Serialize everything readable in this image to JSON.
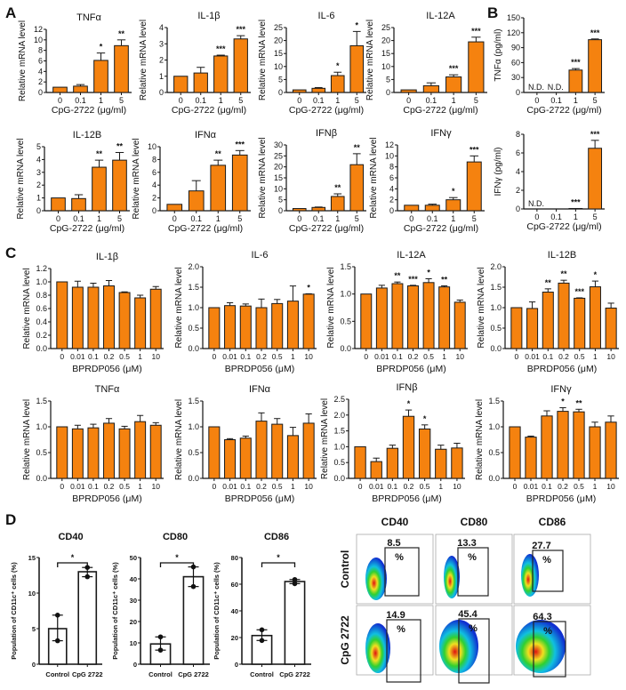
{
  "panel_labels": [
    "A",
    "B",
    "C",
    "D"
  ],
  "colors": {
    "bar": "#f5820f",
    "bar_stroke": "#1a1a1a",
    "axis": "#111111"
  },
  "chart_data": [
    {
      "type": "bar",
      "panel": "A",
      "title": "TNFα",
      "ylabel": "Relative mRNA level",
      "xlabel": "CpG-2722 (μg/ml)",
      "categories": [
        "0",
        "0.1",
        "1",
        "5"
      ],
      "values": [
        1,
        1.2,
        6.1,
        8.9
      ],
      "errors": [
        0,
        0.3,
        1.4,
        1.1
      ],
      "significance": [
        "",
        "",
        "*",
        "**"
      ],
      "yticks": [
        0,
        2,
        4,
        6,
        8,
        10,
        12
      ],
      "ylim": [
        0,
        12
      ]
    },
    {
      "type": "bar",
      "panel": "A",
      "title": "IL-1β",
      "ylabel": "Relative mRNA level",
      "xlabel": "CpG-2722 (μg/ml)",
      "categories": [
        "0",
        "0.1",
        "1",
        "5"
      ],
      "values": [
        1,
        1.2,
        2.25,
        3.3
      ],
      "errors": [
        0,
        0.35,
        0.05,
        0.2
      ],
      "significance": [
        "",
        "",
        "***",
        "***"
      ],
      "yticks": [
        0,
        1,
        2,
        3,
        4
      ],
      "ylim": [
        0,
        4
      ]
    },
    {
      "type": "bar",
      "panel": "A",
      "title": "IL-6",
      "ylabel": "Relative mRNA level",
      "xlabel": "CpG-2722 (μg/ml)",
      "categories": [
        "0",
        "0.1",
        "1",
        "5"
      ],
      "values": [
        1,
        1.6,
        6.5,
        18
      ],
      "errors": [
        0,
        0.3,
        1.3,
        5.5
      ],
      "significance": [
        "",
        "",
        "*",
        "*"
      ],
      "yticks": [
        0,
        5,
        10,
        15,
        20,
        25
      ],
      "ylim": [
        0,
        25
      ]
    },
    {
      "type": "bar",
      "panel": "A",
      "title": "IL-12A",
      "ylabel": "Relative mRNA level",
      "xlabel": "CpG-2722 (μg/ml)",
      "categories": [
        "0",
        "0.1",
        "1",
        "5"
      ],
      "values": [
        1,
        2.6,
        6,
        19.5
      ],
      "errors": [
        0,
        1.1,
        0.8,
        1.8
      ],
      "significance": [
        "",
        "",
        "***",
        "***"
      ],
      "yticks": [
        0,
        5,
        10,
        15,
        20,
        25
      ],
      "ylim": [
        0,
        25
      ]
    },
    {
      "type": "bar",
      "panel": "B",
      "title": "",
      "ylabel": "TNFα (pg/ml)",
      "xlabel": "CpG-2722 (μg/ml)",
      "categories": [
        "0",
        "0.1",
        "1",
        "5"
      ],
      "values": [
        0,
        0,
        45,
        106
      ],
      "errors": [
        0,
        0,
        3,
        1.5
      ],
      "significance": [
        "",
        "",
        "***",
        "***"
      ],
      "annotations": [
        "N.D.",
        "N.D.",
        "",
        ""
      ],
      "yticks": [
        0,
        30,
        60,
        90,
        120,
        150
      ],
      "ylim": [
        0,
        150
      ]
    },
    {
      "type": "bar",
      "panel": "A",
      "title": "IL-12B",
      "ylabel": "Relative mRNA level",
      "xlabel": "CpG-2722 (μg/ml)",
      "categories": [
        "0",
        "0.1",
        "1",
        "5"
      ],
      "values": [
        1,
        0.95,
        3.4,
        3.95
      ],
      "errors": [
        0,
        0.3,
        0.55,
        0.6
      ],
      "significance": [
        "",
        "",
        "**",
        "**"
      ],
      "yticks": [
        0,
        1,
        2,
        3,
        4,
        5
      ],
      "ylim": [
        0,
        5
      ]
    },
    {
      "type": "bar",
      "panel": "A",
      "title": "IFNα",
      "ylabel": "Relative mRNA level",
      "xlabel": "CpG-2722 (μg/ml)",
      "categories": [
        "0",
        "0.1",
        "1",
        "5"
      ],
      "values": [
        1,
        3.1,
        7.1,
        8.7
      ],
      "errors": [
        0,
        1.6,
        0.8,
        0.7
      ],
      "significance": [
        "",
        "",
        "**",
        "***"
      ],
      "yticks": [
        0,
        2,
        4,
        6,
        8,
        10
      ],
      "ylim": [
        0,
        10
      ]
    },
    {
      "type": "bar",
      "panel": "A",
      "title": "IFNβ",
      "ylabel": "Relative mRNA level",
      "xlabel": "CpG-2722 (μg/ml)",
      "categories": [
        "0",
        "0.1",
        "1",
        "5"
      ],
      "values": [
        1,
        1.5,
        6.5,
        21
      ],
      "errors": [
        0,
        0.2,
        1.2,
        5
      ],
      "significance": [
        "",
        "",
        "**",
        "**"
      ],
      "yticks": [
        0,
        5,
        10,
        15,
        20,
        25,
        30
      ],
      "ylim": [
        0,
        30
      ]
    },
    {
      "type": "bar",
      "panel": "A",
      "title": "IFNγ",
      "ylabel": "Relative mRNA level",
      "xlabel": "CpG-2722 (μg/ml)",
      "categories": [
        "0",
        "0.1",
        "1",
        "5"
      ],
      "values": [
        1,
        1,
        2,
        8.9
      ],
      "errors": [
        0,
        0.2,
        0.4,
        1.1
      ],
      "significance": [
        "",
        "",
        "*",
        "***"
      ],
      "yticks": [
        0,
        2,
        4,
        6,
        8,
        10,
        12
      ],
      "ylim": [
        0,
        12
      ]
    },
    {
      "type": "bar",
      "panel": "B",
      "title": "",
      "ylabel": "IFNγ (pg/ml)",
      "xlabel": "CpG-2722 (μg/ml)",
      "categories": [
        "0",
        "0.1",
        "1",
        "5"
      ],
      "values": [
        0,
        0,
        0.05,
        6.5
      ],
      "errors": [
        0,
        0,
        0,
        0.85
      ],
      "significance": [
        "",
        "",
        "***",
        "***"
      ],
      "annotations": [
        "N.D.",
        "",
        "",
        ""
      ],
      "yticks": [
        0,
        2,
        4,
        6,
        8
      ],
      "ylim": [
        0,
        8
      ]
    },
    {
      "type": "bar",
      "panel": "C",
      "title": "IL-1β",
      "ylabel": "Relative mRNA level",
      "xlabel": "BPRDP056 (μM)",
      "categories": [
        "0",
        "0.01",
        "0.1",
        "0.2",
        "0.5",
        "1",
        "10"
      ],
      "values": [
        1,
        0.92,
        0.92,
        0.94,
        0.84,
        0.76,
        0.89
      ],
      "errors": [
        0,
        0.09,
        0.06,
        0.08,
        0.01,
        0.04,
        0.04
      ],
      "significance": [
        "",
        "",
        "",
        "",
        "",
        "",
        ""
      ],
      "yticks": [
        0,
        0.2,
        0.4,
        0.6,
        0.8,
        1.0,
        1.2
      ],
      "ylim": [
        0,
        1.2
      ]
    },
    {
      "type": "bar",
      "panel": "C",
      "title": "IL-6",
      "ylabel": "Relative mRNA level",
      "xlabel": "BPRDP056 (μM)",
      "categories": [
        "0",
        "0.01",
        "0.1",
        "0.2",
        "0.5",
        "1",
        "10"
      ],
      "values": [
        1,
        1.05,
        1.04,
        1.0,
        1.1,
        1.16,
        1.33
      ],
      "errors": [
        0,
        0.07,
        0.05,
        0.21,
        0.1,
        0.37,
        0.01
      ],
      "significance": [
        "",
        "",
        "",
        "",
        "",
        "",
        "*"
      ],
      "yticks": [
        0,
        0.5,
        1.0,
        1.5,
        2.0
      ],
      "ylim": [
        0,
        2.0
      ]
    },
    {
      "type": "bar",
      "panel": "C",
      "title": "IL-12A",
      "ylabel": "Relative mRNA level",
      "xlabel": "BPRDP056 (μM)",
      "categories": [
        "0",
        "0.01",
        "0.1",
        "0.2",
        "0.5",
        "1",
        "10"
      ],
      "values": [
        1,
        1.11,
        1.19,
        1.15,
        1.21,
        1.13,
        0.85
      ],
      "errors": [
        0,
        0.05,
        0.03,
        0.01,
        0.07,
        0.02,
        0.04
      ],
      "significance": [
        "",
        "",
        "**",
        "***",
        "*",
        "**",
        ""
      ],
      "yticks": [
        0,
        0.5,
        1.0,
        1.5
      ],
      "ylim": [
        0,
        1.5
      ]
    },
    {
      "type": "bar",
      "panel": "C",
      "title": "IL-12B",
      "ylabel": "Relative mRNA level",
      "xlabel": "BPRDP056 (μM)",
      "categories": [
        "0",
        "0.01",
        "0.1",
        "0.2",
        "0.5",
        "1",
        "10"
      ],
      "values": [
        1,
        0.98,
        1.38,
        1.6,
        1.23,
        1.51,
        0.99
      ],
      "errors": [
        0,
        0.16,
        0.08,
        0.07,
        0.01,
        0.14,
        0.12
      ],
      "significance": [
        "",
        "",
        "**",
        "**",
        "***",
        "*",
        ""
      ],
      "yticks": [
        0,
        0.5,
        1.0,
        1.5,
        2.0
      ],
      "ylim": [
        0,
        2.0
      ]
    },
    {
      "type": "bar",
      "panel": "C",
      "title": "TNFα",
      "ylabel": "Relative mRNA level",
      "xlabel": "BPRDP056 (μM)",
      "categories": [
        "0",
        "0.01",
        "0.1",
        "0.2",
        "0.5",
        "1",
        "10"
      ],
      "values": [
        1,
        0.96,
        0.98,
        1.07,
        0.96,
        1.1,
        1.03
      ],
      "errors": [
        0,
        0.07,
        0.07,
        0.09,
        0.05,
        0.12,
        0.05
      ],
      "significance": [
        "",
        "",
        "",
        "",
        "",
        "",
        ""
      ],
      "yticks": [
        0,
        0.5,
        1.0,
        1.5
      ],
      "ylim": [
        0,
        1.5
      ]
    },
    {
      "type": "bar",
      "panel": "C",
      "title": "IFNα",
      "ylabel": "Relative mRNA level",
      "xlabel": "BPRDP056 (μM)",
      "categories": [
        "0",
        "0.01",
        "0.1",
        "0.2",
        "0.5",
        "1",
        "10"
      ],
      "values": [
        1,
        0.75,
        0.78,
        1.11,
        1.05,
        0.83,
        1.07
      ],
      "errors": [
        0,
        0.02,
        0.04,
        0.16,
        0.11,
        0.16,
        0.18
      ],
      "significance": [
        "",
        "",
        "",
        "",
        "",
        "",
        ""
      ],
      "yticks": [
        0,
        0.5,
        1.0,
        1.5
      ],
      "ylim": [
        0,
        1.5
      ]
    },
    {
      "type": "bar",
      "panel": "C",
      "title": "IFNβ",
      "ylabel": "Relative mRNA level",
      "xlabel": "BPRDP056 (μM)",
      "categories": [
        "0",
        "0.01",
        "0.1",
        "0.2",
        "0.5",
        "1",
        "10"
      ],
      "values": [
        1,
        0.53,
        0.95,
        1.96,
        1.56,
        0.92,
        0.96
      ],
      "errors": [
        0,
        0.11,
        0.1,
        0.2,
        0.13,
        0.13,
        0.15
      ],
      "significance": [
        "",
        "",
        "",
        "*",
        "*",
        "",
        ""
      ],
      "yticks": [
        0,
        0.5,
        1.0,
        1.5,
        2.0,
        2.5
      ],
      "ylim": [
        0,
        2.5
      ]
    },
    {
      "type": "bar",
      "panel": "C",
      "title": "IFNγ",
      "ylabel": "Relative mRNA level",
      "xlabel": "BPRDP056 (μM)",
      "categories": [
        "0",
        "0.01",
        "0.1",
        "0.2",
        "0.5",
        "1",
        "10"
      ],
      "values": [
        1,
        0.8,
        1.21,
        1.3,
        1.29,
        1.0,
        1.09
      ],
      "errors": [
        0,
        0.02,
        0.1,
        0.07,
        0.05,
        0.09,
        0.12
      ],
      "significance": [
        "",
        "",
        "",
        "*",
        "**",
        "",
        ""
      ],
      "yticks": [
        0,
        0.5,
        1.0,
        1.5
      ],
      "ylim": [
        0,
        1.5
      ]
    },
    {
      "type": "bar",
      "panel": "D",
      "style": "open-bar-with-points",
      "title": "CD40",
      "ylabel": "Population of CD11c⁺ cells (%)",
      "xlabel": "",
      "categories": [
        "Control",
        "CpG 2722"
      ],
      "values": [
        5,
        13
      ],
      "points": [
        [
          6.9,
          3.3
        ],
        [
          13.6,
          12.3
        ]
      ],
      "significance_bracket": "*",
      "yticks": [
        0,
        5,
        10,
        15
      ],
      "ylim": [
        0,
        15
      ]
    },
    {
      "type": "bar",
      "panel": "D",
      "style": "open-bar-with-points",
      "title": "CD80",
      "ylabel": "Population of CD11c⁺ cells (%)",
      "xlabel": "",
      "categories": [
        "Control",
        "CpG 2722"
      ],
      "values": [
        9.5,
        41
      ],
      "points": [
        [
          12.8,
          6.6
        ],
        [
          45.6,
          36.4
        ]
      ],
      "significance_bracket": "*",
      "yticks": [
        0,
        10,
        20,
        30,
        40,
        50
      ],
      "ylim": [
        0,
        50
      ]
    },
    {
      "type": "bar",
      "panel": "D",
      "style": "open-bar-with-points",
      "title": "CD86",
      "ylabel": "Population of CD11c⁺ cells (%)",
      "xlabel": "",
      "categories": [
        "Control",
        "CpG 2722"
      ],
      "values": [
        21.5,
        62
      ],
      "points": [
        [
          25.8,
          17.8
        ],
        [
          63.5,
          60.4
        ]
      ],
      "significance_bracket": "*",
      "yticks": [
        0,
        20,
        40,
        60,
        80
      ],
      "ylim": [
        0,
        80
      ]
    }
  ],
  "flow": {
    "columns": [
      "CD40",
      "CD80",
      "CD86"
    ],
    "rows": [
      "Control",
      "CpG 2722"
    ],
    "percentages": [
      [
        "8.5",
        "13.3",
        "27.7"
      ],
      [
        "14.9",
        "45.4",
        "64.3"
      ]
    ],
    "unit": "%"
  }
}
